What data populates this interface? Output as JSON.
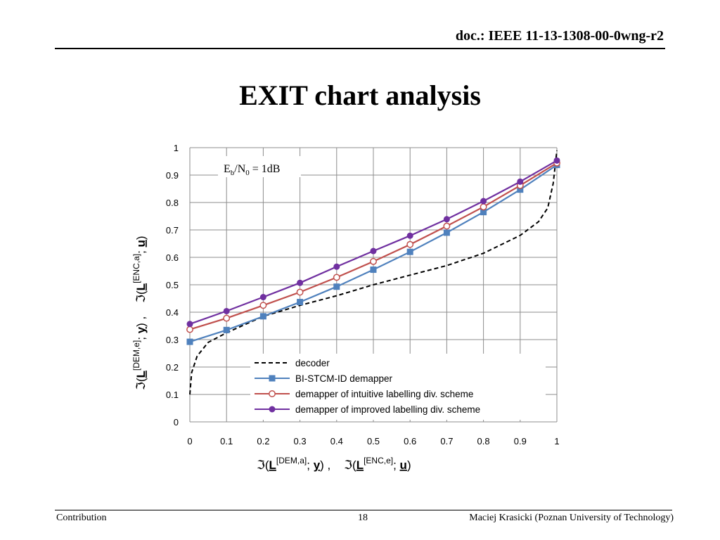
{
  "header": {
    "doc_id": "doc.: IEEE 11-13-1308-00-0wng-r2"
  },
  "slide": {
    "title": "EXIT chart analysis"
  },
  "footer": {
    "left": "Contribution",
    "page": "18",
    "author": "Maciej Krasicki (Poznan University of Technology)"
  },
  "chart_data": {
    "type": "line",
    "xlim": [
      0,
      1
    ],
    "ylim": [
      0,
      1
    ],
    "grid": true,
    "x_ticks": [
      "0",
      "0.1",
      "0.2",
      "0.3",
      "0.4",
      "0.5",
      "0.6",
      "0.7",
      "0.8",
      "0.9",
      "1"
    ],
    "y_ticks": [
      "0",
      "0.1",
      "0.2",
      "0.3",
      "0.4",
      "0.5",
      "0.6",
      "0.7",
      "0.8",
      "0.9",
      "1"
    ],
    "xlabel": {
      "pre1": "ℑ(",
      "L": "L",
      "sup1": "[DEM,a]",
      "mid1": "; ",
      "v1": "y",
      "sep": ") ,    ℑ(",
      "L2": "L",
      "sup2": "[ENC,e]",
      "mid2": "; ",
      "v2": "u",
      "post": ")"
    },
    "ylabel": {
      "pre1": "ℑ(",
      "L": "L",
      "sup1": "[DEM,e]",
      "mid1": "; ",
      "v1": "y",
      "sep": ") ,    ℑ(",
      "L2": "L",
      "sup2": "[ENC,a]",
      "mid2": "; ",
      "v2": "u",
      "post": ")"
    },
    "annotation": {
      "pre": "E",
      "sub1": "b",
      "mid": "/N",
      "sub2": "0",
      "post": " = 1dB"
    },
    "legend_position": "lower-right",
    "series": [
      {
        "name": "decoder",
        "color": "#000000",
        "style": "dashed",
        "marker": "none",
        "x": [
          0.0,
          0.005,
          0.02,
          0.05,
          0.1,
          0.2,
          0.3,
          0.4,
          0.5,
          0.6,
          0.7,
          0.8,
          0.9,
          0.95,
          0.975,
          0.99,
          1.0
        ],
        "y": [
          0.1,
          0.18,
          0.24,
          0.29,
          0.325,
          0.385,
          0.425,
          0.46,
          0.5,
          0.535,
          0.57,
          0.615,
          0.68,
          0.73,
          0.78,
          0.87,
          0.99
        ]
      },
      {
        "name": "BI-STCM-ID demapper",
        "color": "#4f81bd",
        "style": "solid",
        "marker": "square",
        "x": [
          0,
          0.1,
          0.2,
          0.3,
          0.4,
          0.5,
          0.6,
          0.7,
          0.8,
          0.9,
          1.0
        ],
        "y": [
          0.292,
          0.335,
          0.385,
          0.437,
          0.493,
          0.555,
          0.62,
          0.69,
          0.765,
          0.847,
          0.937
        ]
      },
      {
        "name": "demapper of intuitive labelling div. scheme",
        "color": "#c0504d",
        "style": "solid",
        "marker": "circle-open",
        "x": [
          0,
          0.1,
          0.2,
          0.3,
          0.4,
          0.5,
          0.6,
          0.7,
          0.8,
          0.9,
          1.0
        ],
        "y": [
          0.337,
          0.378,
          0.425,
          0.473,
          0.527,
          0.585,
          0.647,
          0.714,
          0.784,
          0.862,
          0.944
        ]
      },
      {
        "name": "demapper of improved labelling div. scheme",
        "color": "#7030a0",
        "style": "solid",
        "marker": "circle-filled",
        "x": [
          0,
          0.1,
          0.2,
          0.3,
          0.4,
          0.5,
          0.6,
          0.7,
          0.8,
          0.9,
          1.0
        ],
        "y": [
          0.357,
          0.404,
          0.455,
          0.507,
          0.566,
          0.623,
          0.679,
          0.739,
          0.805,
          0.876,
          0.953
        ]
      }
    ]
  }
}
